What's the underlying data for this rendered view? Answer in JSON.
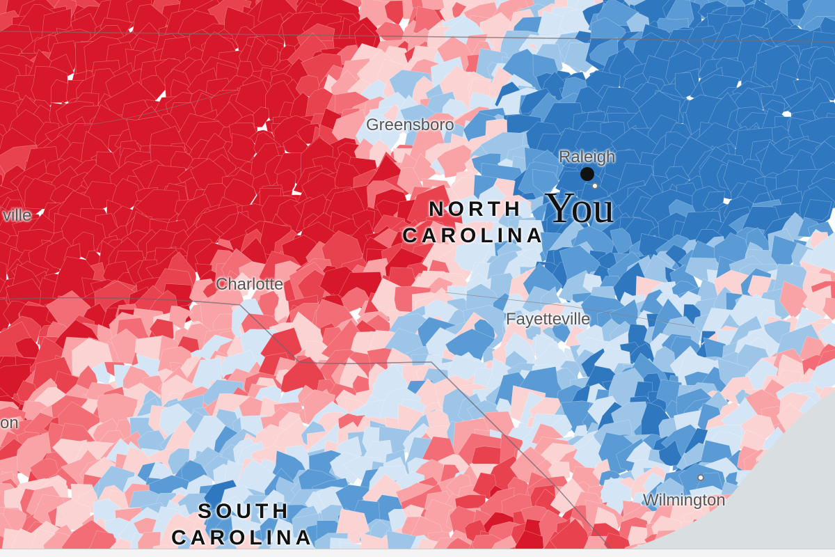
{
  "map": {
    "colors": {
      "dark_red": "#d7182a",
      "red": "#e8424f",
      "mid_red": "#f26d75",
      "light_red": "#f9a3a6",
      "pale_red": "#fcd3d3",
      "pale_blue": "#d4e6f6",
      "light_blue": "#9cc5e8",
      "mid_blue": "#5a9bd5",
      "blue": "#2f78bf",
      "ocean": "#d9dee0"
    },
    "cities": {
      "greensboro": "Greensboro",
      "raleigh": "Raleigh",
      "charlotte": "Charlotte",
      "fayetteville": "Fayetteville",
      "wilmington": "Wilmington",
      "asheville_partial": "ville",
      "partial_left": "on"
    },
    "states": {
      "north_carolina_line1": "NORTH",
      "north_carolina_line2": "CAROLINA",
      "south_carolina_line1": "SOUTH",
      "south_carolina_line2": "CAROLINA"
    },
    "you_label": "You"
  }
}
